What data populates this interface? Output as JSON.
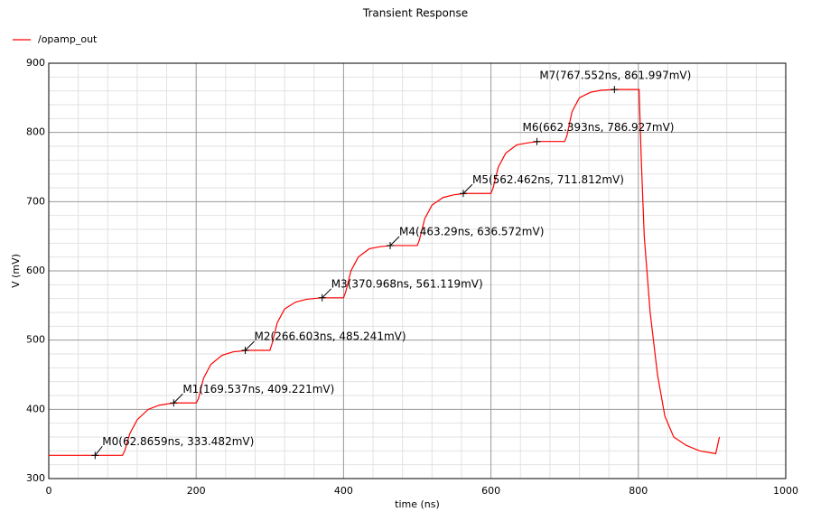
{
  "chart_data": {
    "type": "line",
    "title": "Transient Response",
    "x_label": "time (ns)",
    "y_label": "V (mV)",
    "xlim": [
      0,
      1000
    ],
    "xticks": [
      0,
      200,
      400,
      600,
      800,
      1000
    ],
    "ylim": [
      300,
      900
    ],
    "yticks": [
      300,
      400,
      500,
      600,
      700,
      800,
      900
    ],
    "grid": true,
    "x": [
      0,
      100,
      103,
      110,
      120,
      135,
      150,
      170,
      200,
      203,
      210,
      220,
      235,
      250,
      270,
      300,
      303,
      310,
      320,
      335,
      350,
      370,
      400,
      403,
      410,
      420,
      435,
      450,
      465,
      500,
      503,
      510,
      520,
      535,
      550,
      565,
      600,
      603,
      610,
      620,
      635,
      650,
      665,
      700,
      703,
      710,
      720,
      735,
      750,
      770,
      801,
      804,
      808,
      816,
      826,
      836,
      848,
      865,
      883,
      905,
      910
    ],
    "series": [
      {
        "name": "/opamp_out",
        "color": "#ff0000",
        "values": [
          333.5,
          333.5,
          340,
          365,
          385,
          400,
          406,
          409.2,
          409.2,
          415,
          445,
          465,
          478,
          483,
          485.2,
          485.2,
          495,
          525,
          545,
          555,
          559,
          561.1,
          561.1,
          570,
          600,
          620,
          632,
          635,
          636.6,
          636.6,
          645,
          675,
          695,
          706,
          710,
          711.8,
          711.8,
          720,
          750,
          770,
          782,
          785,
          786.9,
          786.9,
          795,
          830,
          850,
          858,
          861,
          862,
          862,
          760,
          650,
          540,
          450,
          390,
          360,
          348,
          340,
          336,
          360
        ]
      }
    ],
    "markers": [
      {
        "label": "M0(62.8659ns, 333.482mV)",
        "x": 62.8659,
        "y": 333.482
      },
      {
        "label": "M1(169.537ns, 409.221mV)",
        "x": 169.537,
        "y": 409.221
      },
      {
        "label": "M2(266.603ns, 485.241mV)",
        "x": 266.603,
        "y": 485.241
      },
      {
        "label": "M3(370.968ns, 561.119mV)",
        "x": 370.968,
        "y": 561.119
      },
      {
        "label": "M4(463.29ns, 636.572mV)",
        "x": 463.29,
        "y": 636.572
      },
      {
        "label": "M5(562.462ns, 711.812mV)",
        "x": 562.462,
        "y": 711.812
      },
      {
        "label": "M6(662.393ns, 786.927mV)",
        "x": 662.393,
        "y": 786.927
      },
      {
        "label": "M7(767.552ns, 861.997mV)",
        "x": 767.552,
        "y": 861.997
      }
    ]
  }
}
